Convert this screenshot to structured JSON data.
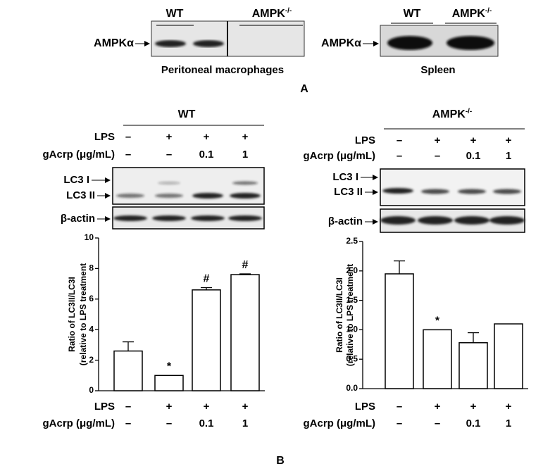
{
  "panel_a": {
    "label": "A",
    "blot_left": {
      "groups": [
        "WT",
        {
          "base": "AMPK",
          "sup": "-/-"
        }
      ],
      "protein": "AMPKα",
      "tissue": "Peritoneal macrophages"
    },
    "blot_right": {
      "groups": [
        "WT",
        {
          "base": "AMPK",
          "sup": "-/-"
        }
      ],
      "protein": "AMPKα",
      "tissue": "Spleen"
    }
  },
  "panel_b": {
    "label": "B",
    "left": {
      "genotype": "WT",
      "conditions": [
        {
          "name": "LPS",
          "levels": [
            "–",
            "+",
            "+",
            "+"
          ]
        },
        {
          "name": "gAcrp (μg/mL)",
          "levels": [
            "–",
            "–",
            "0.1",
            "1"
          ]
        }
      ],
      "blot_labels": [
        "LC3 I",
        "LC3 II",
        "β-actin"
      ]
    },
    "right": {
      "genotype": {
        "base": "AMPK",
        "sup": "-/-"
      },
      "conditions": [
        {
          "name": "LPS",
          "levels": [
            "–",
            "+",
            "+",
            "+"
          ]
        },
        {
          "name": "gAcrp (μg/mL)",
          "levels": [
            "–",
            "–",
            "0.1",
            "1"
          ]
        }
      ],
      "blot_labels": [
        "LC3 I",
        "LC3 II",
        "β-actin"
      ]
    }
  },
  "chart_data": [
    {
      "type": "bar",
      "y_label": [
        "Ratio of LC3II/LC3I",
        "(relative to LPS treatment"
      ],
      "values": [
        2.6,
        1.0,
        6.6,
        7.6
      ],
      "errors": [
        0.6,
        0,
        0.15,
        0.05
      ],
      "annotations": [
        null,
        "*",
        "#",
        "#"
      ],
      "color": "#ffffff",
      "ylim": [
        0,
        10
      ],
      "yticks": [
        0,
        2,
        4,
        6,
        8,
        10
      ]
    },
    {
      "type": "bar",
      "y_label": [
        "Ratio of LC3II/LC3I",
        "(relative to LPS treatment"
      ],
      "values": [
        1.95,
        1.0,
        0.78,
        1.1
      ],
      "errors": [
        0.22,
        0,
        0.17,
        0
      ],
      "annotations": [
        null,
        "*",
        null,
        null
      ],
      "color": "#ffffff",
      "ylim": [
        0,
        2.5
      ],
      "yticks": [
        {
          "value": 0,
          "label": "0.0"
        },
        0.5,
        {
          "value": 1,
          "label": "1.0"
        },
        1.5,
        {
          "value": 2,
          "label": "2.0"
        },
        2.5
      ]
    }
  ]
}
